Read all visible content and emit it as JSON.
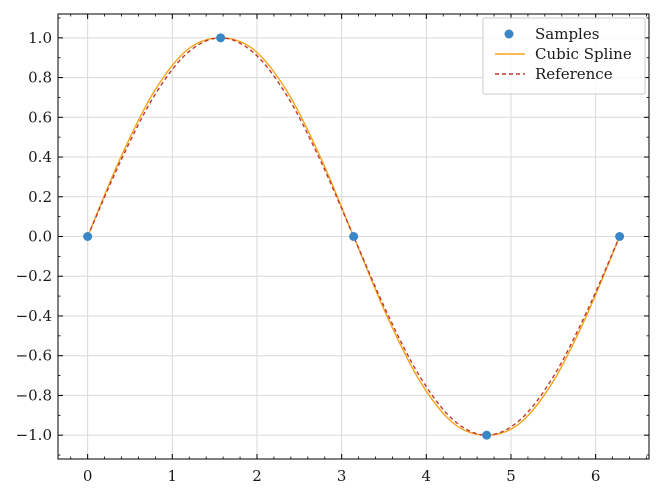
{
  "chart_data": {
    "type": "line",
    "title": "",
    "xlabel": "",
    "ylabel": "",
    "xlim": [
      -0.35,
      6.63
    ],
    "ylim": [
      -1.12,
      1.12
    ],
    "x_ticks": [
      0,
      1,
      2,
      3,
      4,
      5,
      6
    ],
    "y_ticks": [
      -1.0,
      -0.8,
      -0.6,
      -0.4,
      -0.2,
      0.0,
      0.2,
      0.4,
      0.6,
      0.8,
      1.0
    ],
    "x_tick_labels": [
      "0",
      "1",
      "2",
      "3",
      "4",
      "5",
      "6"
    ],
    "y_tick_labels": [
      "−1.0",
      "−0.8",
      "−0.6",
      "−0.4",
      "−0.2",
      "0.0",
      "0.2",
      "0.4",
      "0.6",
      "0.8",
      "1.0"
    ],
    "grid": true,
    "legend_position": "top-right",
    "series": [
      {
        "name": "Samples",
        "kind": "scatter",
        "color": "#3a87c8",
        "x": [
          0,
          1.5708,
          3.1416,
          4.7124,
          6.2832
        ],
        "y": [
          0.0,
          1.0,
          0.0,
          -1.0,
          0.0
        ]
      },
      {
        "name": "Cubic Spline",
        "kind": "line",
        "style": "solid",
        "color": "#f5a31a",
        "x": [
          0.0,
          0.3927,
          0.7854,
          1.1781,
          1.5708,
          1.9635,
          2.3562,
          2.7489,
          3.1416,
          3.5343,
          3.927,
          4.3197,
          4.7124,
          5.1051,
          5.4978,
          5.8905,
          6.2832
        ],
        "y": [
          0.0,
          0.4,
          0.73,
          0.94,
          1.0,
          0.94,
          0.73,
          0.4,
          0.0,
          -0.4,
          -0.73,
          -0.94,
          -1.0,
          -0.94,
          -0.73,
          -0.4,
          0.0
        ]
      },
      {
        "name": "Reference",
        "kind": "line",
        "style": "dashed",
        "color": "#c0392b",
        "x": [
          0.0,
          0.3927,
          0.7854,
          1.1781,
          1.5708,
          1.9635,
          2.3562,
          2.7489,
          3.1416,
          3.5343,
          3.927,
          4.3197,
          4.7124,
          5.1051,
          5.4978,
          5.8905,
          6.2832
        ],
        "y": [
          0.0,
          0.3827,
          0.7071,
          0.9239,
          1.0,
          0.9239,
          0.7071,
          0.3827,
          0.0,
          -0.3827,
          -0.7071,
          -0.9239,
          -1.0,
          -0.9239,
          -0.7071,
          -0.3827,
          0.0
        ]
      }
    ]
  }
}
